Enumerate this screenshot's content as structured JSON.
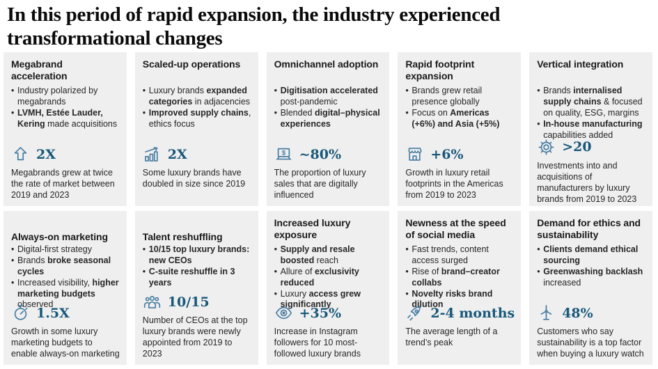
{
  "page": {
    "title": "In this period of rapid expansion, the industry experienced transformational changes"
  },
  "colors": {
    "stat_text": "#19587a",
    "icon_stroke": "#477da2",
    "card_bg": "#efefef"
  },
  "cards": [
    {
      "title": "Megabrand acceleration",
      "bullets": [
        [
          {
            "t": "Industry polarized by megabrands",
            "b": false
          }
        ],
        [
          {
            "t": "LVMH, Estée Lauder, Kering",
            "b": true
          },
          {
            "t": " made acquisitions",
            "b": false
          }
        ]
      ],
      "icon": "arrow-up-icon",
      "stat": "2X",
      "caption": "Megabrands grew at twice the rate of market between 2019 and 2023"
    },
    {
      "title": "Scaled-up operations",
      "bullets": [
        [
          {
            "t": "Luxury brands ",
            "b": false
          },
          {
            "t": "expanded categories",
            "b": true
          },
          {
            "t": " in adjacencies",
            "b": false
          }
        ],
        [
          {
            "t": "Improved supply chains",
            "b": true
          },
          {
            "t": ", ethics focus",
            "b": false
          }
        ]
      ],
      "icon": "bar-chart-growth-icon",
      "stat": "2X",
      "caption": "Some luxury brands have doubled in size since 2019"
    },
    {
      "title": "Omnichannel adoption",
      "bullets": [
        [
          {
            "t": "Digitisation accelerated",
            "b": true
          },
          {
            "t": " post-pandemic",
            "b": false
          }
        ],
        [
          {
            "t": "Blended ",
            "b": false
          },
          {
            "t": "digital–physical experiences",
            "b": true
          }
        ]
      ],
      "icon": "laptop-dollar-icon",
      "stat": "~80%",
      "caption": "The proportion of luxury sales that are digitally influenced"
    },
    {
      "title": "Rapid footprint expansion",
      "bullets": [
        [
          {
            "t": "Brands grew retail presence globally",
            "b": false
          }
        ],
        [
          {
            "t": "Focus on ",
            "b": false
          },
          {
            "t": "Americas (+6%) and Asia (+5%)",
            "b": true
          }
        ]
      ],
      "icon": "storefront-icon",
      "stat": "+6%",
      "caption": "Growth in luxury retail footprints in the Americas from 2019 to 2023"
    },
    {
      "title": "Vertical integration",
      "bullets": [
        [
          {
            "t": "Brands ",
            "b": false
          },
          {
            "t": "internalised supply chains",
            "b": true
          },
          {
            "t": " & focused on quality, ESG, margins",
            "b": false
          }
        ],
        [
          {
            "t": "In-house manufacturing",
            "b": true
          },
          {
            "t": " capabilities added",
            "b": false
          }
        ]
      ],
      "icon": "gear-icon",
      "stat": ">20",
      "caption": "Investments into and acquisitions of manufacturers by luxury brands from 2019 to 2023"
    },
    {
      "title": "Always-on marketing",
      "bullets": [
        [
          {
            "t": "Digital-first strategy",
            "b": false
          }
        ],
        [
          {
            "t": "Brands ",
            "b": false
          },
          {
            "t": "broke seasonal cycles",
            "b": true
          }
        ],
        [
          {
            "t": "Increased visibility, ",
            "b": false
          },
          {
            "t": "higher marketing budgets",
            "b": true
          },
          {
            "t": " observed",
            "b": false
          }
        ]
      ],
      "icon": "stopwatch-icon",
      "stat": "1.5X",
      "caption": "Growth in some luxury marketing budgets to enable always-on marketing"
    },
    {
      "title": "Talent reshuffling",
      "bullets": [
        [
          {
            "t": "10/15 top luxury brands: new CEOs",
            "b": true
          }
        ],
        [
          {
            "t": "C-suite reshuffle in 3 years",
            "b": true
          }
        ]
      ],
      "icon": "people-group-icon",
      "stat": "10/15",
      "caption": "Number of CEOs at the top luxury brands were newly appointed from 2019 to 2023"
    },
    {
      "title": "Increased luxury exposure",
      "bullets": [
        [
          {
            "t": "Supply and resale boosted",
            "b": true
          },
          {
            "t": " reach",
            "b": false
          }
        ],
        [
          {
            "t": "Allure of ",
            "b": false
          },
          {
            "t": "exclusivity reduced",
            "b": true
          }
        ],
        [
          {
            "t": "Luxury ",
            "b": false
          },
          {
            "t": "access grew significantly",
            "b": true
          }
        ]
      ],
      "icon": "eye-icon",
      "stat": "+35%",
      "caption": "Increase in Instagram followers for 10 most-followed luxury brands"
    },
    {
      "title": "Newness at the speed of social media",
      "bullets": [
        [
          {
            "t": "Fast trends, content access surged",
            "b": false
          }
        ],
        [
          {
            "t": "Rise of ",
            "b": false
          },
          {
            "t": "brand–creator collabs",
            "b": true
          }
        ],
        [
          {
            "t": "Novelty risks brand dilution",
            "b": true
          }
        ]
      ],
      "icon": "rocket-icon",
      "stat": "2-4 months",
      "caption": "The average length of a trend’s peak"
    },
    {
      "title": "Demand for ethics and sustainability",
      "bullets": [
        [
          {
            "t": "Clients demand ethical sourcing",
            "b": true
          }
        ],
        [
          {
            "t": "Greenwashing backlash",
            "b": true
          },
          {
            "t": " increased",
            "b": false
          }
        ]
      ],
      "icon": "wind-turbine-icon",
      "stat": "48%",
      "caption": "Customers who say sustainability is a top factor when buying a luxury watch"
    }
  ]
}
